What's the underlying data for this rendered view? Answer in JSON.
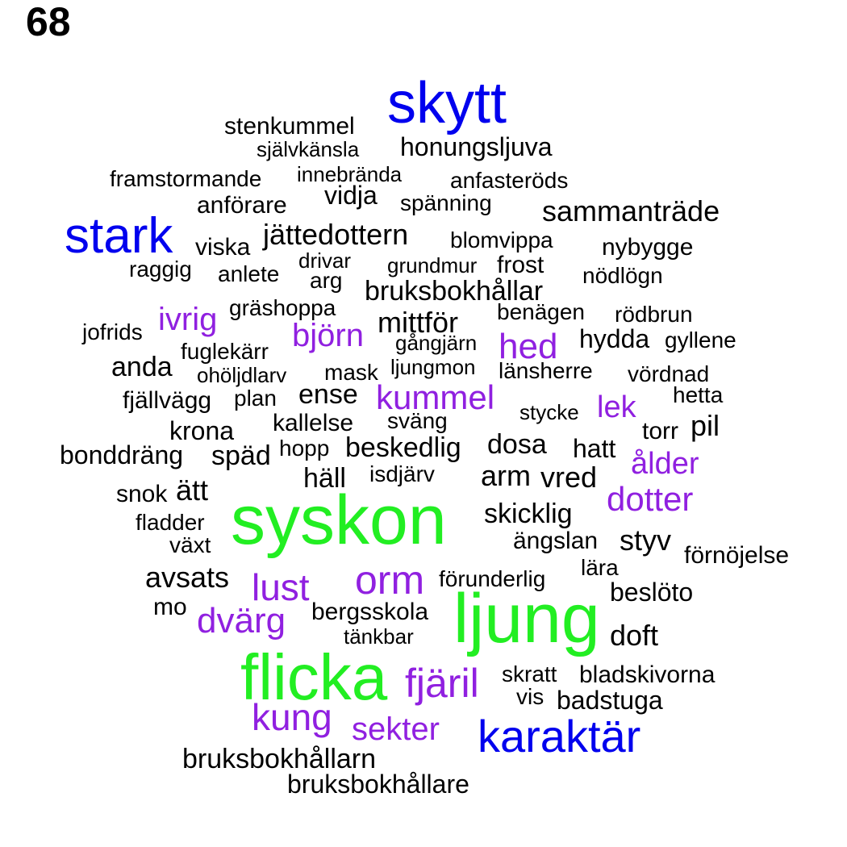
{
  "page_number": "68",
  "colors": {
    "blue": "#0000ee",
    "green": "#22ee22",
    "purple": "#9020e0",
    "black": "#000000"
  },
  "words": [
    {
      "text": "skytt",
      "color": "blue"
    },
    {
      "text": "stark",
      "color": "blue"
    },
    {
      "text": "karaktär",
      "color": "blue"
    },
    {
      "text": "syskon",
      "color": "green"
    },
    {
      "text": "ljung",
      "color": "green"
    },
    {
      "text": "flicka",
      "color": "green"
    },
    {
      "text": "orm",
      "color": "purple"
    },
    {
      "text": "lust",
      "color": "purple"
    },
    {
      "text": "dvärg",
      "color": "purple"
    },
    {
      "text": "fjäril",
      "color": "purple"
    },
    {
      "text": "kung",
      "color": "purple"
    },
    {
      "text": "sekter",
      "color": "purple"
    },
    {
      "text": "kummel",
      "color": "purple"
    },
    {
      "text": "björn",
      "color": "purple"
    },
    {
      "text": "hed",
      "color": "purple"
    },
    {
      "text": "ivrig",
      "color": "purple"
    },
    {
      "text": "lek",
      "color": "purple"
    },
    {
      "text": "ålder",
      "color": "purple"
    },
    {
      "text": "dotter",
      "color": "purple"
    },
    {
      "text": "stenkummel",
      "color": "black"
    },
    {
      "text": "självkänsla",
      "color": "black"
    },
    {
      "text": "honungsljuva",
      "color": "black"
    },
    {
      "text": "framstormande",
      "color": "black"
    },
    {
      "text": "innebrända",
      "color": "black"
    },
    {
      "text": "anfasteröds",
      "color": "black"
    },
    {
      "text": "anförare",
      "color": "black"
    },
    {
      "text": "vidja",
      "color": "black"
    },
    {
      "text": "spänning",
      "color": "black"
    },
    {
      "text": "sammanträde",
      "color": "black"
    },
    {
      "text": "jättedottern",
      "color": "black"
    },
    {
      "text": "viska",
      "color": "black"
    },
    {
      "text": "blomvippa",
      "color": "black"
    },
    {
      "text": "nybygge",
      "color": "black"
    },
    {
      "text": "raggig",
      "color": "black"
    },
    {
      "text": "drivar",
      "color": "black"
    },
    {
      "text": "grundmur",
      "color": "black"
    },
    {
      "text": "frost",
      "color": "black"
    },
    {
      "text": "anlete",
      "color": "black"
    },
    {
      "text": "arg",
      "color": "black"
    },
    {
      "text": "nödlögn",
      "color": "black"
    },
    {
      "text": "bruksbokhållar",
      "color": "black"
    },
    {
      "text": "gräshoppa",
      "color": "black"
    },
    {
      "text": "benägen",
      "color": "black"
    },
    {
      "text": "rödbrun",
      "color": "black"
    },
    {
      "text": "mittför",
      "color": "black"
    },
    {
      "text": "jofrids",
      "color": "black"
    },
    {
      "text": "gångjärn",
      "color": "black"
    },
    {
      "text": "hydda",
      "color": "black"
    },
    {
      "text": "gyllene",
      "color": "black"
    },
    {
      "text": "fuglekärr",
      "color": "black"
    },
    {
      "text": "anda",
      "color": "black"
    },
    {
      "text": "ljungmon",
      "color": "black"
    },
    {
      "text": "ohöljdlarv",
      "color": "black"
    },
    {
      "text": "mask",
      "color": "black"
    },
    {
      "text": "länsherre",
      "color": "black"
    },
    {
      "text": "vördnad",
      "color": "black"
    },
    {
      "text": "hetta",
      "color": "black"
    },
    {
      "text": "fjällvägg",
      "color": "black"
    },
    {
      "text": "plan",
      "color": "black"
    },
    {
      "text": "ense",
      "color": "black"
    },
    {
      "text": "stycke",
      "color": "black"
    },
    {
      "text": "krona",
      "color": "black"
    },
    {
      "text": "kallelse",
      "color": "black"
    },
    {
      "text": "sväng",
      "color": "black"
    },
    {
      "text": "torr",
      "color": "black"
    },
    {
      "text": "pil",
      "color": "black"
    },
    {
      "text": "bonddräng",
      "color": "black"
    },
    {
      "text": "späd",
      "color": "black"
    },
    {
      "text": "hopp",
      "color": "black"
    },
    {
      "text": "beskedlig",
      "color": "black"
    },
    {
      "text": "dosa",
      "color": "black"
    },
    {
      "text": "hatt",
      "color": "black"
    },
    {
      "text": "häll",
      "color": "black"
    },
    {
      "text": "isdjärv",
      "color": "black"
    },
    {
      "text": "arm",
      "color": "black"
    },
    {
      "text": "vred",
      "color": "black"
    },
    {
      "text": "snok",
      "color": "black"
    },
    {
      "text": "ätt",
      "color": "black"
    },
    {
      "text": "skicklig",
      "color": "black"
    },
    {
      "text": "fladder",
      "color": "black"
    },
    {
      "text": "växt",
      "color": "black"
    },
    {
      "text": "ängslan",
      "color": "black"
    },
    {
      "text": "styv",
      "color": "black"
    },
    {
      "text": "förnöjelse",
      "color": "black"
    },
    {
      "text": "avsats",
      "color": "black"
    },
    {
      "text": "förunderlig",
      "color": "black"
    },
    {
      "text": "lära",
      "color": "black"
    },
    {
      "text": "beslöto",
      "color": "black"
    },
    {
      "text": "mo",
      "color": "black"
    },
    {
      "text": "bergsskola",
      "color": "black"
    },
    {
      "text": "tänkbar",
      "color": "black"
    },
    {
      "text": "doft",
      "color": "black"
    },
    {
      "text": "skratt",
      "color": "black"
    },
    {
      "text": "bladskivorna",
      "color": "black"
    },
    {
      "text": "vis",
      "color": "black"
    },
    {
      "text": "badstuga",
      "color": "black"
    },
    {
      "text": "bruksbokhållarn",
      "color": "black"
    },
    {
      "text": "bruksbokhållare",
      "color": "black"
    }
  ]
}
